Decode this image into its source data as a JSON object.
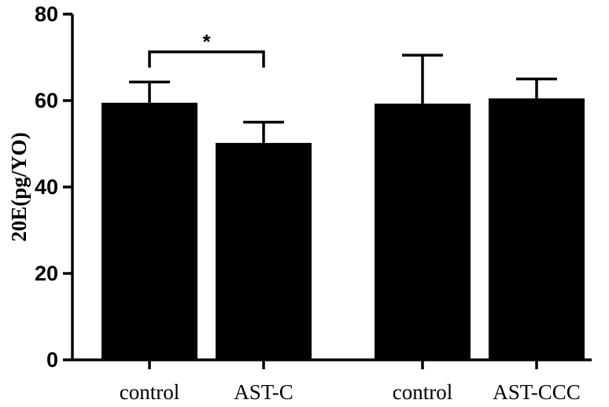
{
  "chart_data": {
    "type": "bar",
    "title": "",
    "xlabel": "",
    "ylabel": "20E(pg/YO)",
    "ylim": [
      0,
      80
    ],
    "yticks": [
      0,
      20,
      40,
      60,
      80
    ],
    "ytick_labels": [
      "0",
      "20",
      "40",
      "60",
      "80"
    ],
    "grid": false,
    "bar_color": "#000000",
    "categories": [
      "control",
      "AST-C",
      "control",
      "AST-CCC"
    ],
    "values": [
      59.5,
      50.2,
      59.3,
      60.5
    ],
    "error": [
      4.8,
      4.8,
      11.2,
      4.5
    ],
    "significance": [
      {
        "from": 0,
        "to": 1,
        "label": "*"
      }
    ]
  }
}
